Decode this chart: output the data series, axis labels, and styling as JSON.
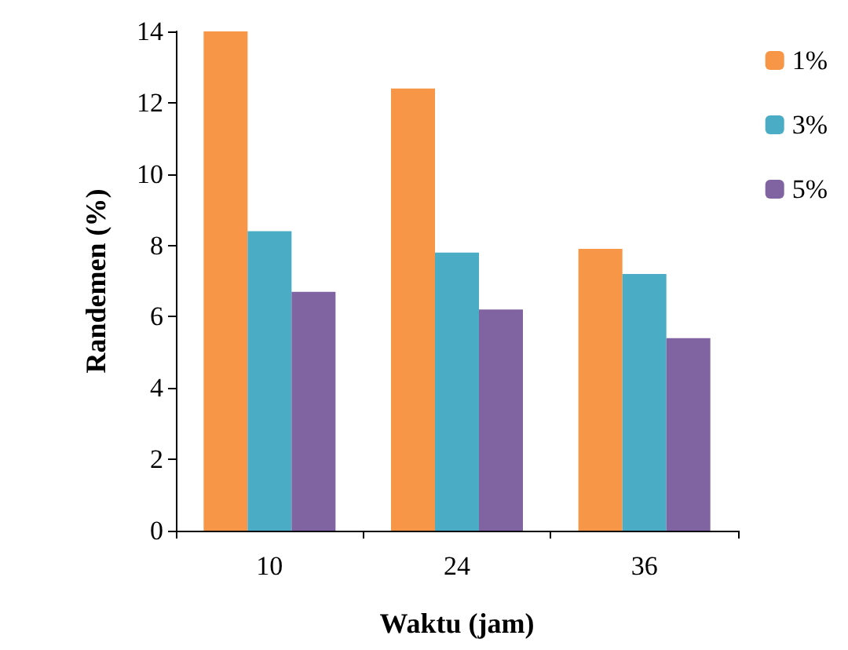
{
  "chart_data": {
    "type": "bar",
    "xlabel": "Waktu (jam)",
    "ylabel": "Randemen (%)",
    "categories": [
      "10",
      "24",
      "36"
    ],
    "series": [
      {
        "name": "1%",
        "color": "#f79646",
        "values": [
          14.0,
          12.4,
          7.9
        ]
      },
      {
        "name": "3%",
        "color": "#4bacc6",
        "values": [
          8.4,
          7.8,
          7.2
        ]
      },
      {
        "name": "5%",
        "color": "#8064a2",
        "values": [
          6.7,
          6.2,
          5.4
        ]
      }
    ],
    "ylim": [
      0,
      14
    ],
    "yticks": [
      0,
      2,
      4,
      6,
      8,
      10,
      12,
      14
    ],
    "grid": false,
    "legend": "top right"
  }
}
